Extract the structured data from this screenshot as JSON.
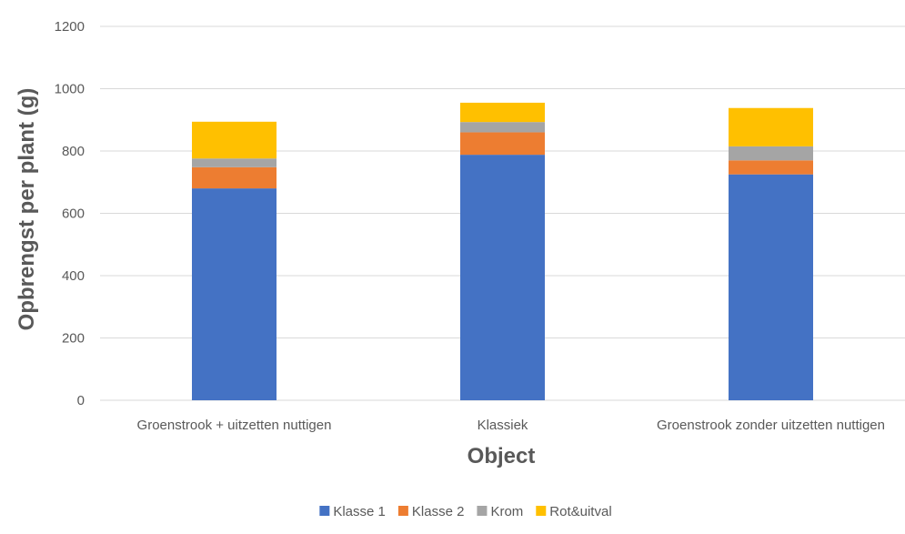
{
  "chart_data": {
    "type": "bar",
    "stacked": true,
    "title": "",
    "xlabel": "Object",
    "ylabel": "Opbrengst per plant (g)",
    "ylim": [
      0,
      1200
    ],
    "yticks": [
      0,
      200,
      400,
      600,
      800,
      1000,
      1200
    ],
    "grid": true,
    "legend_position": "bottom",
    "categories": [
      "Groenstrook + uitzetten nuttigen",
      "Klassiek",
      "Groenstrook zonder uitzetten nuttigen"
    ],
    "series": [
      {
        "name": "Klasse 1",
        "color": "#4472C4",
        "values": [
          680,
          788,
          725
        ]
      },
      {
        "name": "Klasse 2",
        "color": "#ED7D31",
        "values": [
          68,
          72,
          45
        ]
      },
      {
        "name": "Krom",
        "color": "#A5A5A5",
        "values": [
          28,
          33,
          45
        ]
      },
      {
        "name": "Rot&uitval",
        "color": "#FFC000",
        "values": [
          118,
          62,
          123
        ]
      }
    ]
  }
}
